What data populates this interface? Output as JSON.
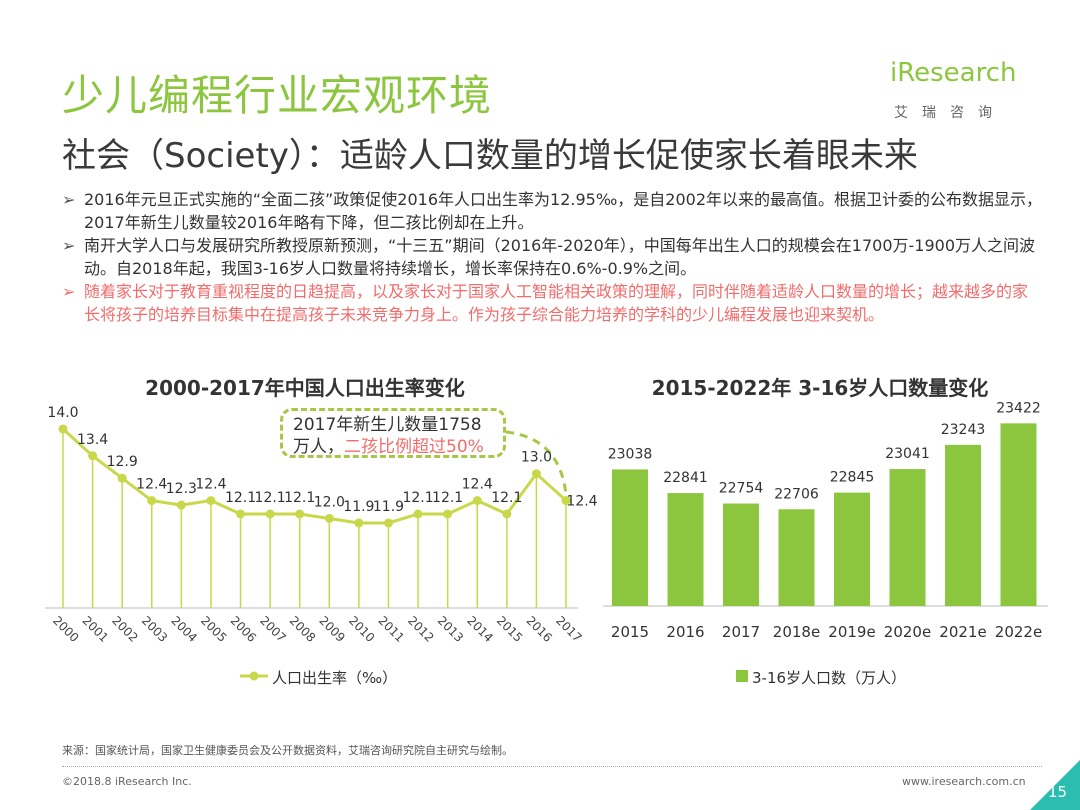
{
  "header": {
    "title": "少儿编程行业宏观环境",
    "subtitle": "社会（Society）：适龄人口数量的增长促使家长着眼未来",
    "logo_brand": "iResearch",
    "logo_tag": "艾瑞咨询"
  },
  "bullets": [
    {
      "arrow": "➢",
      "text": "2016年元旦正式实施的“全面二孩”政策促使2016年人口出生率为12.95‰，是自2002年以来的最高值。根据卫计委的公布数据显示，2017年新生儿数量较2016年略有下降，但二孩比例却在上升。"
    },
    {
      "arrow": "➢",
      "text": "南开大学人口与发展研究所教授原新预测，“十三五”期间（2016年-2020年），中国每年出生人口的规模会在1700万-1900万人之间波动。自2018年起，我国3-16岁人口数量将持续增长，增长率保持在0.6%-0.9%之间。"
    },
    {
      "arrow": "➢",
      "text": "随着家长对于教育重视程度的日趋提高，以及家长对于国家人工智能相关政策的理解，同时伴随着适龄人口数量的增长；越来越多的家长将孩子的培养目标集中在提高孩子未来竞争力身上。作为孩子综合能力培养的学科的少儿编程发展也迎来契机。"
    }
  ],
  "callout": {
    "line1": "2017年新生儿数量1758",
    "line2_a": "万人，",
    "line2_b": "二孩比例超过50%"
  },
  "colors": {
    "accent": "#8cc63f",
    "line": "#c8d84a",
    "highlight": "#f26c6c",
    "teal": "#2bbdb0"
  },
  "chart_data": [
    {
      "type": "line",
      "title": "2000-2017年中国人口出生率变化",
      "categories": [
        "2000",
        "2001",
        "2002",
        "2003",
        "2004",
        "2005",
        "2006",
        "2007",
        "2008",
        "2009",
        "2010",
        "2011",
        "2012",
        "2013",
        "2014",
        "2015",
        "2016",
        "2017"
      ],
      "series": [
        {
          "name": "人口出生率（‰）",
          "values": [
            14.0,
            13.4,
            12.9,
            12.4,
            12.3,
            12.4,
            12.1,
            12.1,
            12.1,
            12.0,
            11.9,
            11.9,
            12.1,
            12.1,
            12.4,
            12.1,
            13.0,
            12.4
          ]
        }
      ],
      "value_labels": [
        "14.0",
        "13.4",
        "12.9",
        "12.4",
        "12.3",
        "12.4",
        "12.1",
        "12.1",
        "12.1",
        "12.0",
        "11.9",
        "11.9",
        "12.1",
        "12.1",
        "12.4",
        "12.1",
        "13.0",
        "12.4"
      ],
      "ylim": [
        10,
        14.2
      ],
      "legend": "人口出生率（‰）"
    },
    {
      "type": "bar",
      "title": "2015-2022年 3-16岁人口数量变化",
      "categories": [
        "2015",
        "2016",
        "2017",
        "2018e",
        "2019e",
        "2020e",
        "2021e",
        "2022e"
      ],
      "series": [
        {
          "name": "3-16岁人口数（万人）",
          "values": [
            23038,
            22841,
            22754,
            22706,
            22845,
            23041,
            23243,
            23422
          ]
        }
      ],
      "ylim": [
        21900,
        23450
      ],
      "legend": "3-16岁人口数（万人）"
    }
  ],
  "footer": {
    "source": "来源：国家统计局，国家卫生健康委员会及公开数据资料，艾瑞咨询研究院自主研究与绘制。",
    "copyright": "©2018.8  iResearch Inc.",
    "url": "www.iresearch.com.cn",
    "page": "15"
  }
}
